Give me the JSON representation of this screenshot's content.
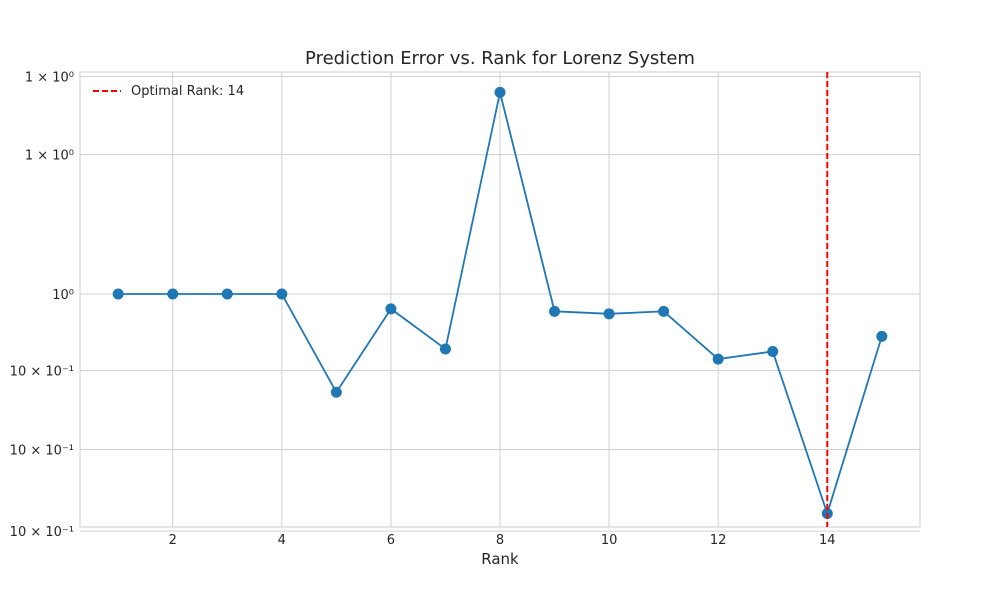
{
  "chart_data": {
    "type": "line",
    "title": "Prediction Error vs. Rank for Lorenz System",
    "xlabel": "Rank",
    "ylabel": "",
    "yscale": "log",
    "xlim": [
      0.3,
      15.7
    ],
    "ylim": [
      0.91,
      1.094
    ],
    "x": [
      1,
      2,
      3,
      4,
      5,
      6,
      7,
      8,
      9,
      10,
      11,
      12,
      13,
      14,
      15
    ],
    "series": [
      {
        "name": "Prediction Error",
        "color": "#1f77b4",
        "values": [
          1.0,
          1.0,
          1.0,
          1.0,
          0.961,
          0.994,
          0.978,
          1.085,
          0.993,
          0.992,
          0.993,
          0.974,
          0.977,
          0.915,
          0.983
        ]
      }
    ],
    "xticks": [
      2,
      4,
      6,
      8,
      10,
      12,
      14
    ],
    "xtick_labels": [
      "2",
      "4",
      "6",
      "8",
      "10",
      "12",
      "14"
    ],
    "yticks": [
      1.092,
      1.058,
      1.0,
      0.9695,
      0.939,
      0.9085,
      0.878
    ],
    "ytick_labels": [
      "1 × 10⁰",
      "1 × 10⁰",
      "10⁰",
      "10 × 10⁻¹",
      "10 × 10⁻¹",
      "10 × 10⁻¹",
      "10 × 10⁻¹"
    ],
    "optimal_rank": 14,
    "optimal_color": "#ff0000",
    "legend": {
      "position": "top-left",
      "entries": [
        "Optimal Rank: 14"
      ]
    },
    "grid": true
  }
}
